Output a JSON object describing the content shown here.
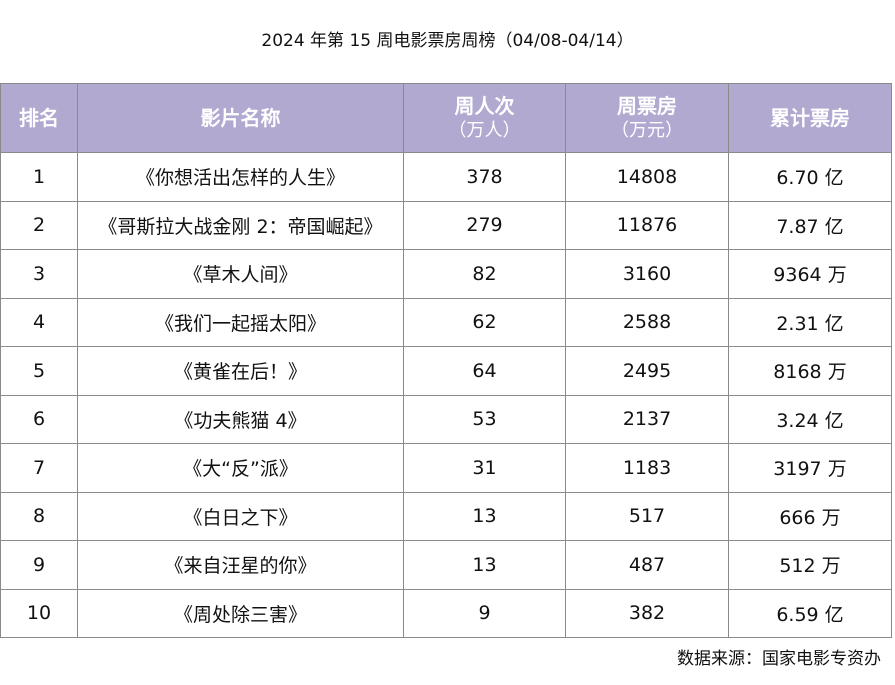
{
  "title": "2024 年第 15 周电影票房周榜（04/08-04/14）",
  "headers": {
    "rank": "排名",
    "film": "影片名称",
    "weekly_admissions": "周人次",
    "weekly_admissions_unit": "（万人）",
    "weekly_box_office": "周票房",
    "weekly_box_office_unit": "（万元）",
    "cumulative_box_office": "累计票房"
  },
  "rows": [
    {
      "rank": "1",
      "film": "《你想活出怎样的人生》",
      "admissions": "378",
      "box_office": "14808",
      "cumulative": "6.70 亿"
    },
    {
      "rank": "2",
      "film": "《哥斯拉大战金刚 2：帝国崛起》",
      "admissions": "279",
      "box_office": "11876",
      "cumulative": "7.87 亿"
    },
    {
      "rank": "3",
      "film": "《草木人间》",
      "admissions": "82",
      "box_office": "3160",
      "cumulative": "9364 万"
    },
    {
      "rank": "4",
      "film": "《我们一起摇太阳》",
      "admissions": "62",
      "box_office": "2588",
      "cumulative": "2.31 亿"
    },
    {
      "rank": "5",
      "film": "《黄雀在后！》",
      "admissions": "64",
      "box_office": "2495",
      "cumulative": "8168 万"
    },
    {
      "rank": "6",
      "film": "《功夫熊猫 4》",
      "admissions": "53",
      "box_office": "2137",
      "cumulative": "3.24 亿"
    },
    {
      "rank": "7",
      "film": "《大“反”派》",
      "admissions": "31",
      "box_office": "1183",
      "cumulative": "3197 万"
    },
    {
      "rank": "8",
      "film": "《白日之下》",
      "admissions": "13",
      "box_office": "517",
      "cumulative": "666 万"
    },
    {
      "rank": "9",
      "film": "《来自汪星的你》",
      "admissions": "13",
      "box_office": "487",
      "cumulative": "512 万"
    },
    {
      "rank": "10",
      "film": "《周处除三害》",
      "admissions": "9",
      "box_office": "382",
      "cumulative": "6.59 亿"
    }
  ],
  "source": "数据来源：国家电影专资办",
  "colors": {
    "header_bg": "#b2a9d1",
    "header_text": "#ffffff",
    "border": "#8a8a8a"
  }
}
